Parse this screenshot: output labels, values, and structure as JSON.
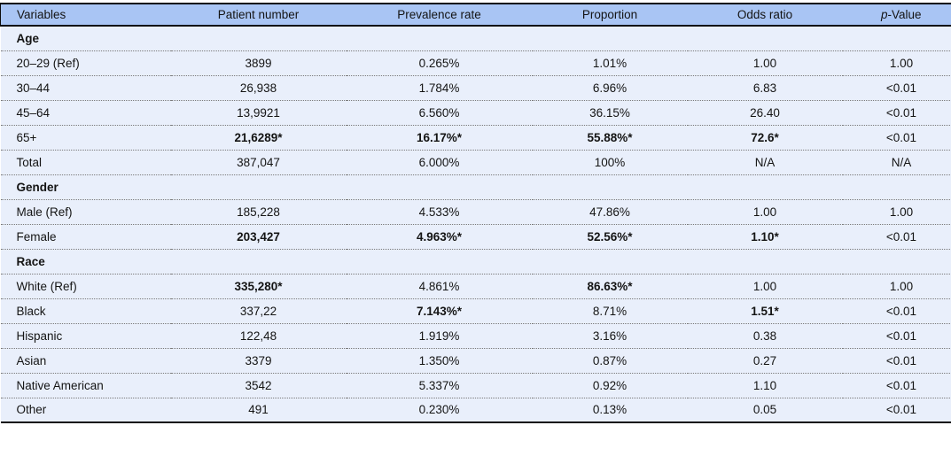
{
  "colors": {
    "header_bg": "#a9c5f4",
    "row_bg": "#e9effb",
    "border": "#0b0b0b",
    "dotted_divider": "#7a7a7a",
    "text": "#141414"
  },
  "table": {
    "columns": [
      {
        "label": "Variables"
      },
      {
        "label": "Patient number"
      },
      {
        "label": "Prevalence rate"
      },
      {
        "label": "Proportion"
      },
      {
        "label": "Odds ratio"
      },
      {
        "label": "p-Value",
        "italic_chars": 1
      }
    ],
    "rows": [
      {
        "section": "Age"
      },
      {
        "cells": [
          "20–29 (Ref)",
          "3899",
          "0.265%",
          "1.01%",
          "1.00",
          "1.00"
        ],
        "bold": []
      },
      {
        "cells": [
          "30–44",
          "26,938",
          "1.784%",
          "6.96%",
          "6.83",
          "<0.01"
        ],
        "bold": []
      },
      {
        "cells": [
          "45–64",
          "13,9921",
          "6.560%",
          "36.15%",
          "26.40",
          "<0.01"
        ],
        "bold": []
      },
      {
        "cells": [
          "65+",
          "21,6289*",
          "16.17%*",
          "55.88%*",
          "72.6*",
          "<0.01"
        ],
        "bold": [
          1,
          2,
          3,
          4
        ]
      },
      {
        "cells": [
          "Total",
          "387,047",
          "6.000%",
          "100%",
          "N/A",
          "N/A"
        ],
        "bold": []
      },
      {
        "section": "Gender"
      },
      {
        "cells": [
          "Male (Ref)",
          "185,228",
          "4.533%",
          "47.86%",
          "1.00",
          "1.00"
        ],
        "bold": []
      },
      {
        "cells": [
          "Female",
          "203,427",
          "4.963%*",
          "52.56%*",
          "1.10*",
          "<0.01"
        ],
        "bold": [
          1,
          2,
          3,
          4
        ]
      },
      {
        "section": "Race"
      },
      {
        "cells": [
          "White (Ref)",
          "335,280*",
          "4.861%",
          "86.63%*",
          "1.00",
          "1.00"
        ],
        "bold": [
          1,
          3
        ]
      },
      {
        "cells": [
          "Black",
          "337,22",
          "7.143%*",
          "8.71%",
          "1.51*",
          "<0.01"
        ],
        "bold": [
          2,
          4
        ]
      },
      {
        "cells": [
          "Hispanic",
          "122,48",
          "1.919%",
          "3.16%",
          "0.38",
          "<0.01"
        ],
        "bold": []
      },
      {
        "cells": [
          "Asian",
          "3379",
          "1.350%",
          "0.87%",
          "0.27",
          "<0.01"
        ],
        "bold": []
      },
      {
        "cells": [
          "Native American",
          "3542",
          "5.337%",
          "0.92%",
          "1.10",
          "<0.01"
        ],
        "bold": []
      },
      {
        "cells": [
          "Other",
          "491",
          "0.230%",
          "0.13%",
          "0.05",
          "<0.01"
        ],
        "bold": []
      }
    ]
  }
}
